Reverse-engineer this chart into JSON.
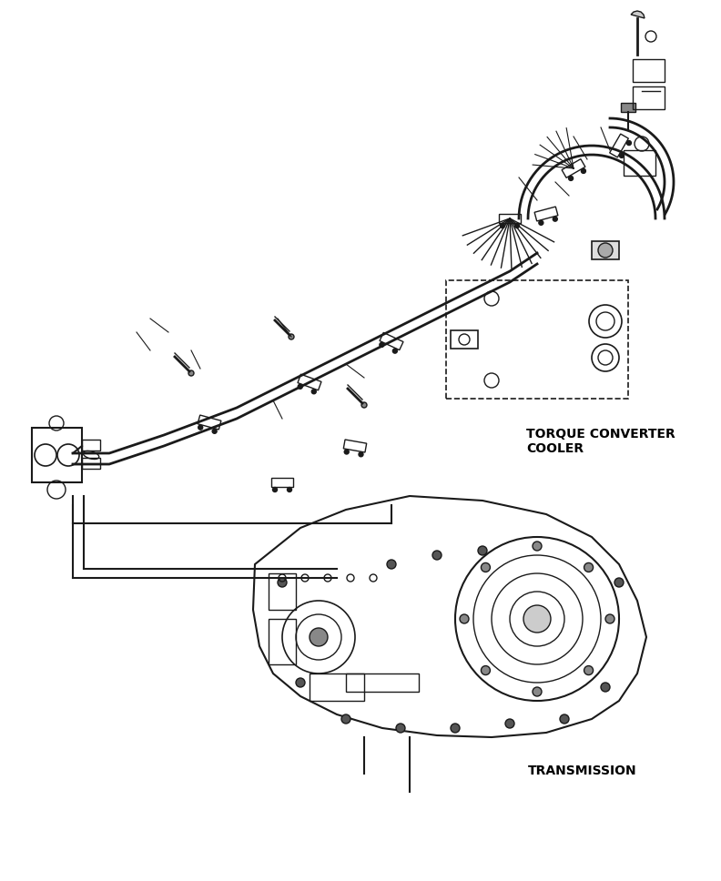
{
  "title": "",
  "background_color": "#ffffff",
  "label_torque_converter": "TORQUE CONVERTER\nCOOLER",
  "label_transmission": "TRANSMISSION",
  "label_fontsize": 10,
  "label_fontfamily": "DejaVu Sans",
  "figsize": [
    7.92,
    9.68
  ],
  "dpi": 100,
  "line_color": "#1a1a1a",
  "line_width": 1.0,
  "text_color": "#000000"
}
